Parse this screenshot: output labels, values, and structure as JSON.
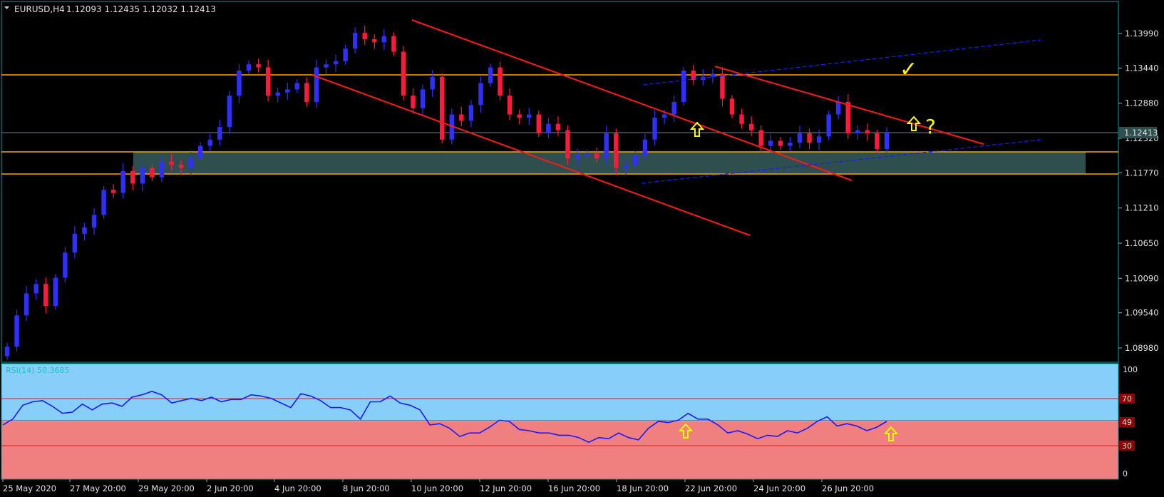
{
  "header": {
    "symbol_timeframe": "EURUSD,H4",
    "ohlc": "1.12093 1.12435 1.12032 1.12413"
  },
  "rsi": {
    "label": "RSI(14) 50.3685",
    "levels": [
      70,
      49,
      30
    ],
    "scale_labels": [
      "100",
      "70",
      "49",
      "30",
      "0"
    ]
  },
  "colors": {
    "background": "#000000",
    "bull_candle": "#2f2fff",
    "bear_candle": "#ff1a3c",
    "channel_line": "#ff1a1a",
    "blue_channel": "#1a1aff",
    "horizontal_level": "#ffa500",
    "zone_fill": "#2f4f4f",
    "annotation": "#ffff00",
    "frame": "#00a0a0",
    "rsi_overbought_bg": "#87cefa",
    "rsi_oversold_bg": "#f08080",
    "rsi_line": "#1a1aff"
  },
  "annotations": [
    {
      "type": "arrow-up-icon"
    },
    {
      "type": "arrow-up-icon"
    },
    {
      "type": "arrow-up-icon"
    },
    {
      "type": "arrow-up-icon"
    },
    {
      "type": "checkmark-icon",
      "text": "✓"
    },
    {
      "type": "question-mark",
      "text": "?"
    }
  ],
  "chart_data": [
    {
      "type": "candlestick",
      "title": "EURUSD,H4",
      "y_ticks": [
        "1.13990",
        "1.13440",
        "1.12880",
        "1.12320",
        "1.11770",
        "1.11210",
        "1.10650",
        "1.10090",
        "1.09540",
        "1.08980"
      ],
      "current_price_label": "1.12413",
      "x_ticks": [
        "25 May 2020",
        "27 May 20:00",
        "29 May 20:00",
        "2 Jun 20:00",
        "4 Jun 20:00",
        "8 Jun 20:00",
        "10 Jun 20:00",
        "12 Jun 20:00",
        "16 Jun 20:00",
        "18 Jun 20:00",
        "22 Jun 20:00",
        "24 Jun 20:00",
        "26 Jun 20:00"
      ],
      "ylim": [
        1.0878,
        1.1445
      ],
      "horizontal_levels": [
        1.1344,
        1.121,
        1.118
      ],
      "support_zone": [
        1.118,
        1.121
      ],
      "close_path": [
        1.09,
        1.095,
        1.0985,
        1.1,
        1.0965,
        1.101,
        1.105,
        1.108,
        1.109,
        1.111,
        1.115,
        1.1145,
        1.118,
        1.116,
        1.1185,
        1.117,
        1.1195,
        1.119,
        1.1185,
        1.12,
        1.122,
        1.123,
        1.125,
        1.13,
        1.134,
        1.135,
        1.1345,
        1.13,
        1.1305,
        1.131,
        1.132,
        1.129,
        1.1345,
        1.135,
        1.1355,
        1.1375,
        1.14,
        1.139,
        1.1385,
        1.1395,
        1.137,
        1.13,
        1.128,
        1.131,
        1.133,
        1.123,
        1.127,
        1.126,
        1.1285,
        1.132,
        1.1345,
        1.13,
        1.127,
        1.1265,
        1.127,
        1.124,
        1.1255,
        1.1245,
        1.12,
        1.1205,
        1.1208,
        1.12,
        1.124,
        1.1185,
        1.119,
        1.1205,
        1.123,
        1.1265,
        1.127,
        1.129,
        1.134,
        1.1325,
        1.133,
        1.1335,
        1.1295,
        1.127,
        1.1255,
        1.1245,
        1.122,
        1.1228,
        1.122,
        1.1225,
        1.124,
        1.1225,
        1.1235,
        1.127,
        1.129,
        1.124,
        1.1245,
        1.124,
        1.1215,
        1.1241
      ],
      "trend_lines": [
        {
          "name": "",
          "color": "red"
        },
        {
          "name": "",
          "color": "red"
        },
        {
          "name": "",
          "color": "red"
        },
        {
          "name": "",
          "color": "blue-dashed"
        },
        {
          "name": "",
          "color": "blue-dashed"
        }
      ]
    },
    {
      "type": "line",
      "title": "RSI(14) 50.3685",
      "ylim": [
        0,
        100
      ],
      "levels": [
        70,
        49,
        30
      ],
      "values": [
        47,
        52,
        64,
        67,
        68,
        63,
        57,
        58,
        65,
        60,
        65,
        66,
        63,
        71,
        73,
        76,
        73,
        66,
        68,
        70,
        68,
        71,
        67,
        69,
        69,
        73,
        72,
        70,
        66,
        62,
        74,
        72,
        68,
        62,
        62,
        60,
        52,
        67,
        67,
        72,
        66,
        64,
        60,
        47,
        48,
        44,
        37,
        40,
        40,
        45,
        51,
        50,
        43,
        42,
        40,
        40,
        38,
        38,
        36,
        32,
        36,
        35,
        40,
        36,
        34,
        44,
        50,
        49,
        51,
        57,
        52,
        52,
        47,
        40,
        42,
        39,
        35,
        38,
        37,
        42,
        40,
        44,
        50,
        54,
        46,
        48,
        46,
        42,
        45,
        50
      ]
    }
  ]
}
